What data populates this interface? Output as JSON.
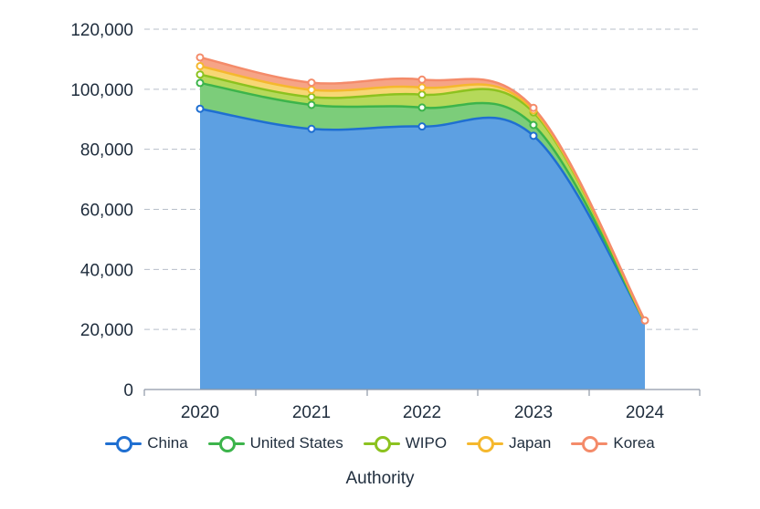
{
  "chart_data": {
    "type": "area",
    "stacked": true,
    "categories": [
      "2020",
      "2021",
      "2022",
      "2023",
      "2024"
    ],
    "xlabel": "Authority",
    "ylabel": "",
    "ylim": [
      0,
      120000
    ],
    "yticks": [
      "0",
      "20,000",
      "40,000",
      "60,000",
      "80,000",
      "100,000",
      "120,000"
    ],
    "grid": true,
    "legend_position": "bottom",
    "series": [
      {
        "name": "China",
        "color": "#1f6fd1",
        "fill": "#5da0e2",
        "values": [
          93500,
          86800,
          87600,
          84500,
          22500
        ]
      },
      {
        "name": "United States",
        "color": "#3cb44b",
        "fill": "#7ccd7a",
        "values": [
          8600,
          8000,
          6300,
          3600,
          0
        ]
      },
      {
        "name": "WIPO",
        "color": "#8cc21f",
        "fill": "#b5d95a",
        "values": [
          2800,
          2600,
          4300,
          4200,
          0
        ]
      },
      {
        "name": "Japan",
        "color": "#f5b82e",
        "fill": "#f7d774",
        "values": [
          2800,
          2400,
          2400,
          700,
          0
        ]
      },
      {
        "name": "Korea",
        "color": "#f48b6a",
        "fill": "#f6a486",
        "values": [
          2900,
          2400,
          2600,
          800,
          500
        ]
      }
    ]
  }
}
